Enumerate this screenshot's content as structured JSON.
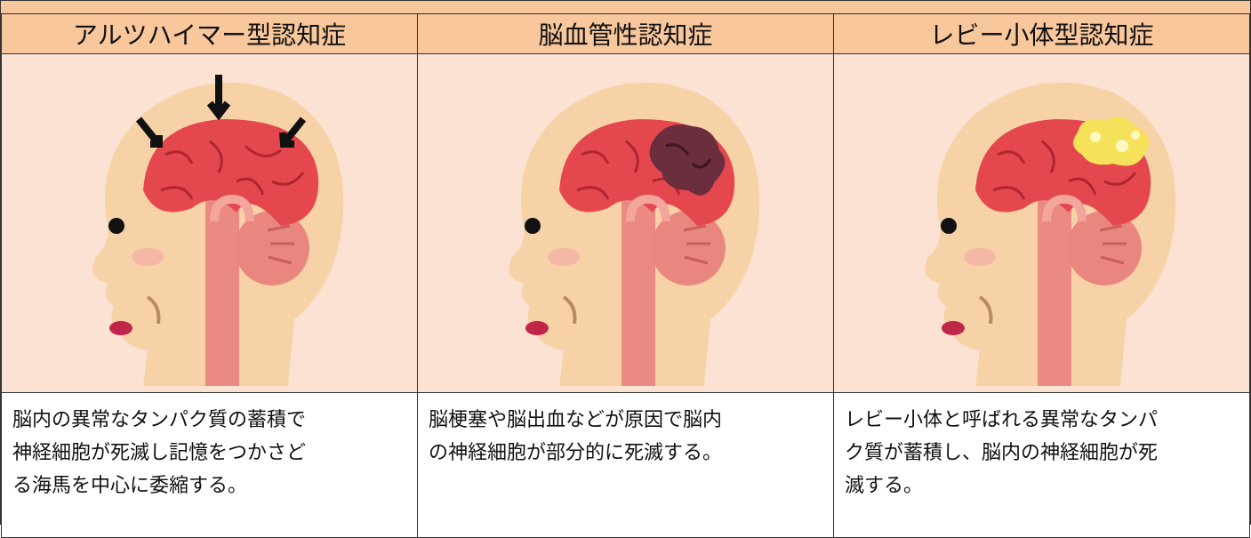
{
  "table": {
    "headers": [
      "アルツハイマー型認知症",
      "脳血管性認知症",
      "レビー小体型認知症"
    ],
    "descriptions": [
      [
        "脳内の異常なタンパク質の蓄積で",
        "神経細胞が死滅し記憶をつかさど",
        "る海馬を中心に委縮する。"
      ],
      [
        "脳梗塞や脳出血などが原因で脳内",
        "の神経細胞が部分的に死滅する。"
      ],
      [
        "レビー小体と呼ばれる異常なタンパ",
        "ク質が蓄積し、脳内の神経細胞が死",
        "滅する。"
      ]
    ]
  }
}
